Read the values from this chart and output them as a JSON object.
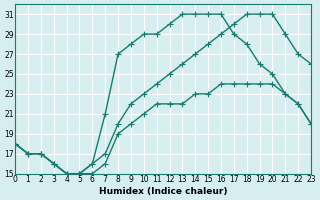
{
  "xlabel": "Humidex (Indice chaleur)",
  "bg_color": "#d6eef0",
  "grid_color": "#ffffff",
  "line_color": "#1a7a6e",
  "xmin": 0,
  "xmax": 23,
  "ymin": 15,
  "ymax": 32,
  "yticks": [
    15,
    17,
    19,
    21,
    23,
    25,
    27,
    29,
    31
  ],
  "xticks": [
    0,
    1,
    2,
    3,
    4,
    5,
    6,
    7,
    8,
    9,
    10,
    11,
    12,
    13,
    14,
    15,
    16,
    17,
    18,
    19,
    20,
    21,
    22,
    23
  ],
  "line1_x": [
    0,
    1,
    2,
    3,
    4,
    5,
    6,
    7,
    8,
    9,
    10,
    11,
    12,
    13,
    14,
    15,
    16,
    17,
    18,
    19,
    20,
    21,
    22,
    23
  ],
  "line1_y": [
    18,
    17,
    17,
    16,
    15,
    15,
    15,
    16,
    19,
    20,
    21,
    22,
    22,
    22,
    23,
    23,
    24,
    24,
    24,
    24,
    24,
    23,
    22,
    20
  ],
  "line2_x": [
    0,
    1,
    2,
    3,
    4,
    5,
    6,
    7,
    8,
    9,
    10,
    11,
    12,
    13,
    14,
    15,
    16,
    17,
    18,
    19,
    20,
    21,
    22,
    23
  ],
  "line2_y": [
    18,
    17,
    17,
    16,
    15,
    15,
    16,
    17,
    20,
    22,
    23,
    24,
    25,
    26,
    27,
    28,
    29,
    30,
    31,
    31,
    31,
    29,
    27,
    26
  ],
  "line3_x": [
    0,
    1,
    2,
    3,
    4,
    5,
    6,
    7,
    8,
    9,
    10,
    11,
    12,
    13,
    14,
    15,
    16,
    17,
    18,
    19,
    20,
    21,
    22,
    23
  ],
  "line3_y": [
    18,
    17,
    17,
    16,
    15,
    15,
    16,
    21,
    27,
    28,
    29,
    29,
    30,
    31,
    31,
    31,
    31,
    29,
    28,
    26,
    25,
    23,
    22,
    20
  ],
  "marker_size": 2.5,
  "line_width": 1.0
}
